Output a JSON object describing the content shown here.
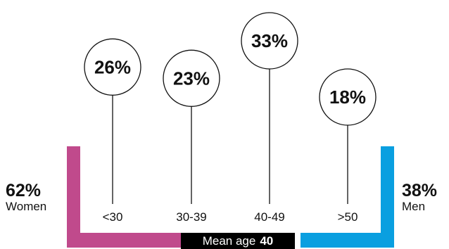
{
  "chart_data": {
    "type": "bubble-stick",
    "title": "",
    "categories": [
      "<30",
      "30-39",
      "40-49",
      ">50"
    ],
    "values": [
      26,
      23,
      33,
      18
    ],
    "value_labels": [
      "26%",
      "23%",
      "33%",
      "18%"
    ],
    "unit": "%"
  },
  "gender": {
    "women": {
      "pct": "62%",
      "label": "Women",
      "color": "#c04a8c"
    },
    "men": {
      "pct": "38%",
      "label": "Men",
      "color": "#0a9fe0"
    }
  },
  "mean_age": {
    "label": "Mean age",
    "value": "40"
  }
}
